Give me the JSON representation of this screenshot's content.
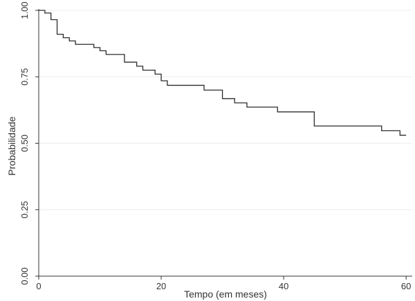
{
  "chart_data": {
    "type": "line",
    "step": true,
    "title": "",
    "xlabel": "Tempo (em meses)",
    "ylabel": "Probabilidade",
    "xlim": [
      0,
      61
    ],
    "ylim": [
      0,
      1
    ],
    "x_ticks": [
      0,
      20,
      40,
      60
    ],
    "y_ticks": [
      0,
      0.25,
      0.5,
      0.75,
      1
    ],
    "y_tick_labels": [
      "0.00",
      "0.25",
      "0.50",
      "0.75",
      "1.00"
    ],
    "grid": "horizontal",
    "series": [
      {
        "x": [
          0,
          1,
          2,
          3,
          4,
          5,
          6,
          9,
          10,
          11,
          14,
          16,
          17,
          19,
          20,
          21,
          27,
          30,
          32,
          34,
          39,
          45,
          56,
          59,
          60
        ],
        "y": [
          1.0,
          0.99,
          0.965,
          0.91,
          0.897,
          0.885,
          0.872,
          0.86,
          0.848,
          0.834,
          0.805,
          0.79,
          0.775,
          0.76,
          0.735,
          0.718,
          0.7,
          0.668,
          0.652,
          0.636,
          0.618,
          0.565,
          0.547,
          0.53,
          0.53
        ]
      }
    ],
    "colors": {
      "line": "#2b2b2b",
      "axis": "#333333",
      "grid": "#ececec"
    }
  }
}
